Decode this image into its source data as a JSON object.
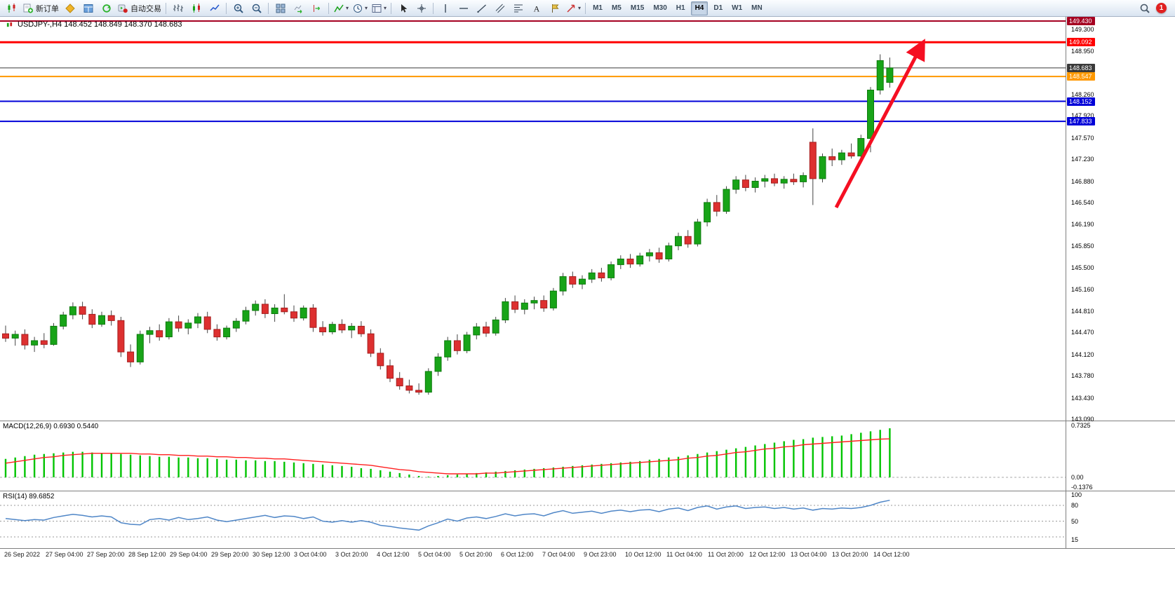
{
  "toolbar": {
    "items": [
      {
        "name": "chart-window-icon",
        "icon": "app",
        "interactable": false
      },
      {
        "name": "new-order-button",
        "icon": "neworder",
        "label": "新订单"
      },
      {
        "name": "market-watch-button",
        "icon": "marketwatch"
      },
      {
        "name": "data-window-button",
        "icon": "datawindow"
      },
      {
        "name": "navigator-button",
        "icon": "navigator"
      },
      {
        "name": "autotrading-button",
        "icon": "autotrading",
        "label": "自动交易"
      },
      {
        "sep": true
      },
      {
        "name": "bar-chart-button",
        "icon": "bars"
      },
      {
        "name": "candlestick-chart-button",
        "icon": "candles"
      },
      {
        "name": "line-chart-button",
        "icon": "linechart"
      },
      {
        "sep": true
      },
      {
        "name": "zoom-in-button",
        "icon": "zoomin"
      },
      {
        "name": "zoom-out-button",
        "icon": "zoomout"
      },
      {
        "sep": true
      },
      {
        "name": "tile-windows-button",
        "icon": "tile"
      },
      {
        "name": "auto-scroll-button",
        "icon": "autoscroll"
      },
      {
        "name": "chart-shift-button",
        "icon": "chartshift"
      },
      {
        "sep": true
      },
      {
        "name": "indicators-button",
        "icon": "indicators",
        "dropdown": true
      },
      {
        "name": "timeframes-menu-button",
        "icon": "clock",
        "dropdown": true
      },
      {
        "name": "templates-button",
        "icon": "template",
        "dropdown": true
      },
      {
        "sep": true
      },
      {
        "name": "cursor-button",
        "icon": "cursor"
      },
      {
        "name": "crosshair-button",
        "icon": "crosshair"
      },
      {
        "sep": true
      },
      {
        "name": "vertical-line-button",
        "icon": "vline"
      },
      {
        "name": "horizontal-line-button",
        "icon": "hline"
      },
      {
        "name": "trendline-button",
        "icon": "trendline"
      },
      {
        "name": "channel-button",
        "icon": "channel"
      },
      {
        "name": "fibonacci-button",
        "icon": "fibo"
      },
      {
        "name": "text-button",
        "icon": "textA"
      },
      {
        "name": "label-button",
        "icon": "labelflag"
      },
      {
        "name": "shapes-button",
        "icon": "shapes",
        "dropdown": true
      },
      {
        "sep": true
      }
    ],
    "timeframes": [
      "M1",
      "M5",
      "M15",
      "M30",
      "H1",
      "H4",
      "D1",
      "W1",
      "MN"
    ],
    "active_timeframe": "H4",
    "notification_count": "1"
  },
  "chart": {
    "symbol_info": "USDJPY-,H4  148.452 148.849 148.370 148.683",
    "levels": [
      {
        "label": "149.430",
        "value": 149.43,
        "color": "#a50021",
        "width": 2
      },
      {
        "label": "149.092",
        "value": 149.092,
        "color": "#ff0000",
        "width": 3
      },
      {
        "label": "148.683",
        "value": 148.683,
        "color": "#3a3a3a",
        "width": 1
      },
      {
        "label": "148.547",
        "value": 148.547,
        "color": "#ff9800",
        "width": 2
      },
      {
        "label": "148.152",
        "value": 148.152,
        "color": "#0000d8",
        "width": 2
      },
      {
        "label": "147.833",
        "value": 147.833,
        "color": "#0000d8",
        "width": 2
      }
    ],
    "price_ticks": [
      "149.300",
      "148.950",
      "148.260",
      "147.920",
      "147.570",
      "147.230",
      "146.880",
      "146.540",
      "146.190",
      "145.850",
      "145.500",
      "145.160",
      "144.810",
      "144.470",
      "144.120",
      "143.780",
      "143.430",
      "143.090"
    ],
    "macd_label": "MACD(12,26,9) 0.6930 0.5440",
    "macd_ticks": [
      "0.7325",
      "0.00",
      "-0.1376"
    ],
    "rsi_label": "RSI(14) 89.6852",
    "rsi_ticks": [
      "100",
      "80",
      "50",
      "15"
    ],
    "time_labels": [
      "26 Sep 2022",
      "27 Sep 04:00",
      "27 Sep 20:00",
      "28 Sep 12:00",
      "29 Sep 04:00",
      "29 Sep 20:00",
      "30 Sep 12:00",
      "3 Oct 04:00",
      "3 Oct 20:00",
      "4 Oct 12:00",
      "5 Oct 04:00",
      "5 Oct 20:00",
      "6 Oct 12:00",
      "7 Oct 04:00",
      "9 Oct 23:00",
      "10 Oct 12:00",
      "11 Oct 04:00",
      "11 Oct 20:00",
      "12 Oct 12:00",
      "13 Oct 04:00",
      "13 Oct 20:00",
      "14 Oct 12:00"
    ]
  },
  "chart_data": {
    "type": "candlestick",
    "symbol": "USDJPY-",
    "timeframe": "H4",
    "title": "USDJPY-,H4  148.452 148.849 148.370 148.683",
    "current_bar": {
      "open": 148.452,
      "high": 148.849,
      "low": 148.37,
      "close": 148.683
    },
    "y_axis_range": [
      143.09,
      149.43
    ],
    "macd_range": [
      -0.1376,
      0.7325
    ],
    "macd_last": 0.693,
    "macd_signal_last": 0.544,
    "rsi_last": 89.6852,
    "horizontal_levels": [
      149.43,
      149.092,
      148.683,
      148.547,
      148.152,
      147.833
    ],
    "annotations": {
      "trend_arrow": {
        "direction": "up",
        "color": "#f50f22",
        "from_price": 146.4,
        "to_price": 149.0
      }
    },
    "ohlc": [
      [
        144.45,
        144.58,
        144.32,
        144.38
      ],
      [
        144.38,
        144.5,
        144.26,
        144.44
      ],
      [
        144.44,
        144.52,
        144.2,
        144.27
      ],
      [
        144.27,
        144.4,
        144.16,
        144.34
      ],
      [
        144.34,
        144.46,
        144.22,
        144.28
      ],
      [
        144.28,
        144.62,
        144.26,
        144.57
      ],
      [
        144.57,
        144.8,
        144.52,
        144.75
      ],
      [
        144.75,
        144.95,
        144.68,
        144.88
      ],
      [
        144.88,
        144.96,
        144.68,
        144.76
      ],
      [
        144.76,
        144.84,
        144.54,
        144.6
      ],
      [
        144.6,
        144.8,
        144.56,
        144.74
      ],
      [
        144.74,
        144.82,
        144.58,
        144.66
      ],
      [
        144.66,
        144.72,
        144.08,
        144.16
      ],
      [
        144.16,
        144.28,
        143.92,
        144.0
      ],
      [
        144.0,
        144.5,
        143.96,
        144.44
      ],
      [
        144.44,
        144.56,
        144.3,
        144.5
      ],
      [
        144.5,
        144.6,
        144.34,
        144.4
      ],
      [
        144.4,
        144.7,
        144.36,
        144.64
      ],
      [
        144.64,
        144.74,
        144.48,
        144.54
      ],
      [
        144.54,
        144.68,
        144.44,
        144.62
      ],
      [
        144.62,
        144.78,
        144.54,
        144.72
      ],
      [
        144.72,
        144.8,
        144.46,
        144.52
      ],
      [
        144.52,
        144.6,
        144.34,
        144.4
      ],
      [
        144.4,
        144.58,
        144.36,
        144.54
      ],
      [
        144.54,
        144.7,
        144.48,
        144.65
      ],
      [
        144.65,
        144.88,
        144.6,
        144.82
      ],
      [
        144.82,
        144.98,
        144.74,
        144.92
      ],
      [
        144.92,
        145.0,
        144.7,
        144.77
      ],
      [
        144.77,
        144.92,
        144.64,
        144.86
      ],
      [
        144.86,
        145.08,
        144.76,
        144.8
      ],
      [
        144.8,
        144.9,
        144.64,
        144.7
      ],
      [
        144.7,
        144.9,
        144.66,
        144.86
      ],
      [
        144.86,
        144.92,
        144.48,
        144.55
      ],
      [
        144.55,
        144.65,
        144.42,
        144.48
      ],
      [
        144.48,
        144.64,
        144.44,
        144.6
      ],
      [
        144.6,
        144.68,
        144.46,
        144.51
      ],
      [
        144.51,
        144.62,
        144.38,
        144.57
      ],
      [
        144.57,
        144.65,
        144.4,
        144.45
      ],
      [
        144.45,
        144.52,
        144.08,
        144.14
      ],
      [
        144.14,
        144.22,
        143.88,
        143.94
      ],
      [
        143.94,
        144.04,
        143.68,
        143.74
      ],
      [
        143.74,
        143.84,
        143.56,
        143.62
      ],
      [
        143.62,
        143.72,
        143.5,
        143.55
      ],
      [
        143.55,
        143.66,
        143.48,
        143.52
      ],
      [
        143.52,
        143.9,
        143.48,
        143.85
      ],
      [
        143.85,
        144.14,
        143.78,
        144.08
      ],
      [
        144.08,
        144.4,
        144.02,
        144.34
      ],
      [
        144.34,
        144.44,
        144.12,
        144.18
      ],
      [
        144.18,
        144.48,
        144.14,
        144.43
      ],
      [
        144.43,
        144.62,
        144.36,
        144.56
      ],
      [
        144.56,
        144.64,
        144.4,
        144.46
      ],
      [
        144.46,
        144.72,
        144.42,
        144.67
      ],
      [
        144.67,
        145.02,
        144.62,
        144.96
      ],
      [
        144.96,
        145.06,
        144.78,
        144.84
      ],
      [
        144.84,
        145.0,
        144.76,
        144.94
      ],
      [
        144.94,
        145.04,
        144.84,
        144.98
      ],
      [
        144.98,
        145.06,
        144.8,
        144.86
      ],
      [
        144.86,
        145.18,
        144.82,
        145.13
      ],
      [
        145.13,
        145.42,
        145.06,
        145.36
      ],
      [
        145.36,
        145.44,
        145.18,
        145.24
      ],
      [
        145.24,
        145.38,
        145.16,
        145.32
      ],
      [
        145.32,
        145.48,
        145.26,
        145.42
      ],
      [
        145.42,
        145.5,
        145.28,
        145.34
      ],
      [
        145.34,
        145.6,
        145.3,
        145.55
      ],
      [
        145.55,
        145.7,
        145.48,
        145.64
      ],
      [
        145.64,
        145.72,
        145.5,
        145.56
      ],
      [
        145.56,
        145.74,
        145.52,
        145.69
      ],
      [
        145.69,
        145.8,
        145.6,
        145.74
      ],
      [
        145.74,
        145.82,
        145.58,
        145.64
      ],
      [
        145.64,
        145.9,
        145.6,
        145.85
      ],
      [
        145.85,
        146.06,
        145.78,
        146.0
      ],
      [
        146.0,
        146.1,
        145.82,
        145.88
      ],
      [
        145.88,
        146.28,
        145.84,
        146.23
      ],
      [
        146.23,
        146.6,
        146.16,
        146.54
      ],
      [
        146.54,
        146.66,
        146.32,
        146.4
      ],
      [
        146.4,
        146.8,
        146.36,
        146.75
      ],
      [
        146.75,
        146.96,
        146.68,
        146.9
      ],
      [
        146.9,
        146.98,
        146.72,
        146.78
      ],
      [
        146.78,
        146.94,
        146.7,
        146.88
      ],
      [
        146.88,
        146.98,
        146.78,
        146.92
      ],
      [
        146.92,
        147.0,
        146.8,
        146.85
      ],
      [
        146.85,
        146.96,
        146.76,
        146.91
      ],
      [
        146.91,
        147.0,
        146.82,
        146.87
      ],
      [
        146.87,
        147.02,
        146.78,
        146.97
      ],
      [
        147.5,
        147.72,
        146.5,
        146.92
      ],
      [
        146.92,
        147.32,
        146.86,
        147.27
      ],
      [
        147.27,
        147.4,
        147.12,
        147.22
      ],
      [
        147.22,
        147.38,
        147.14,
        147.33
      ],
      [
        147.33,
        147.48,
        147.24,
        147.28
      ],
      [
        147.28,
        147.62,
        147.2,
        147.56
      ],
      [
        147.56,
        148.38,
        147.34,
        148.33
      ],
      [
        148.33,
        148.9,
        148.26,
        148.8
      ],
      [
        148.452,
        148.849,
        148.37,
        148.683
      ]
    ],
    "macd_histogram": [
      0.26,
      0.28,
      0.3,
      0.32,
      0.33,
      0.34,
      0.35,
      0.36,
      0.36,
      0.35,
      0.34,
      0.34,
      0.33,
      0.32,
      0.31,
      0.3,
      0.29,
      0.29,
      0.28,
      0.28,
      0.27,
      0.27,
      0.26,
      0.25,
      0.25,
      0.24,
      0.24,
      0.23,
      0.23,
      0.22,
      0.21,
      0.2,
      0.19,
      0.18,
      0.17,
      0.16,
      0.15,
      0.13,
      0.12,
      0.1,
      0.08,
      0.06,
      0.04,
      0.02,
      0.01,
      0.02,
      0.03,
      0.04,
      0.05,
      0.06,
      0.07,
      0.08,
      0.09,
      0.1,
      0.11,
      0.12,
      0.13,
      0.14,
      0.15,
      0.16,
      0.17,
      0.18,
      0.19,
      0.2,
      0.21,
      0.22,
      0.23,
      0.25,
      0.26,
      0.28,
      0.29,
      0.31,
      0.33,
      0.35,
      0.37,
      0.39,
      0.41,
      0.43,
      0.45,
      0.47,
      0.49,
      0.51,
      0.53,
      0.54,
      0.56,
      0.57,
      0.58,
      0.59,
      0.61,
      0.63,
      0.65,
      0.67,
      0.693
    ],
    "macd_signal": [
      0.2,
      0.22,
      0.24,
      0.26,
      0.28,
      0.29,
      0.31,
      0.32,
      0.33,
      0.34,
      0.34,
      0.34,
      0.34,
      0.34,
      0.33,
      0.33,
      0.32,
      0.32,
      0.31,
      0.31,
      0.3,
      0.3,
      0.29,
      0.29,
      0.28,
      0.28,
      0.27,
      0.27,
      0.26,
      0.26,
      0.25,
      0.24,
      0.23,
      0.22,
      0.21,
      0.2,
      0.19,
      0.18,
      0.17,
      0.15,
      0.13,
      0.11,
      0.1,
      0.08,
      0.07,
      0.06,
      0.05,
      0.05,
      0.05,
      0.05,
      0.06,
      0.06,
      0.07,
      0.08,
      0.09,
      0.1,
      0.11,
      0.12,
      0.13,
      0.14,
      0.15,
      0.16,
      0.17,
      0.18,
      0.19,
      0.2,
      0.21,
      0.22,
      0.23,
      0.24,
      0.25,
      0.27,
      0.28,
      0.3,
      0.31,
      0.33,
      0.35,
      0.36,
      0.38,
      0.4,
      0.41,
      0.43,
      0.44,
      0.46,
      0.47,
      0.48,
      0.49,
      0.5,
      0.51,
      0.52,
      0.53,
      0.54,
      0.544
    ],
    "rsi": [
      55,
      53,
      51,
      53,
      52,
      57,
      60,
      63,
      61,
      58,
      60,
      58,
      47,
      44,
      43,
      53,
      55,
      52,
      57,
      53,
      55,
      58,
      52,
      49,
      52,
      55,
      58,
      61,
      57,
      60,
      59,
      55,
      58,
      50,
      48,
      51,
      48,
      51,
      48,
      42,
      40,
      37,
      35,
      33,
      41,
      47,
      54,
      50,
      56,
      58,
      55,
      59,
      64,
      60,
      63,
      64,
      60,
      66,
      70,
      65,
      67,
      69,
      65,
      69,
      71,
      68,
      71,
      72,
      68,
      73,
      75,
      70,
      76,
      79,
      73,
      77,
      79,
      74,
      76,
      77,
      74,
      76,
      73,
      75,
      71,
      74,
      73,
      75,
      74,
      76,
      80,
      86,
      89.7
    ]
  }
}
